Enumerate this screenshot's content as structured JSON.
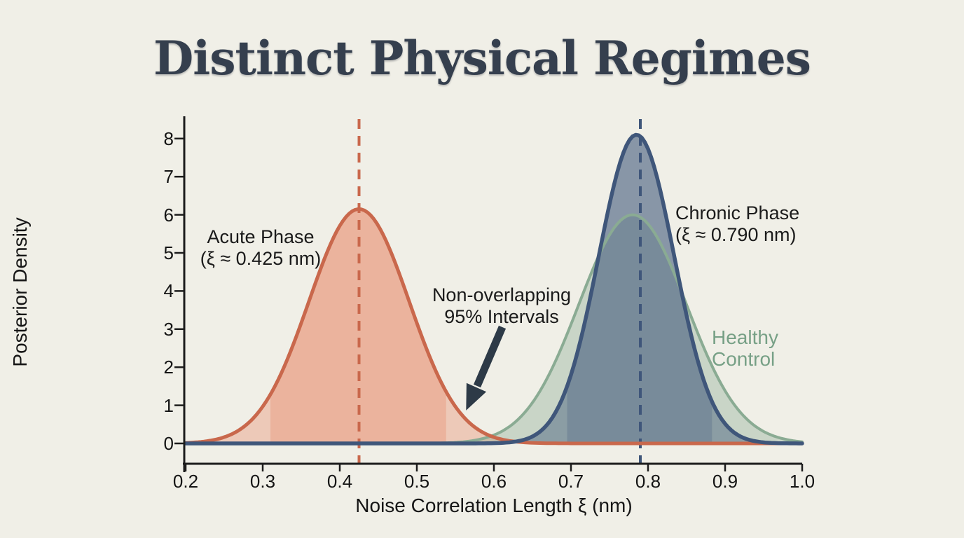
{
  "title": "Distinct Physical Regimes",
  "axes": {
    "xlabel": "Noise Correlation Length ξ (nm)",
    "ylabel": "Posterior Density",
    "x_ticks": [
      "0.2",
      "0.3",
      "0.4",
      "0.5",
      "0.6",
      "0.7",
      "0.8",
      "0.9",
      "1.0"
    ],
    "y_ticks": [
      "0",
      "1",
      "2",
      "3",
      "4",
      "5",
      "6",
      "7",
      "8"
    ]
  },
  "annotations": {
    "acute_line1": "Acute Phase",
    "acute_line2": "(ξ ≈ 0.425 nm)",
    "chronic_line1": "Chronic Phase",
    "chronic_line2": "(ξ ≈ 0.790 nm)",
    "healthy_line1": "Healthy",
    "healthy_line2": "Control",
    "interval_line1": "Non-overlapping",
    "interval_line2": "95% Intervals"
  },
  "colors": {
    "background": "#f0efe7",
    "title_text": "#353f4e",
    "axis": "#1c1c1c",
    "acute": "#c9684c",
    "acute_fill": "#e8825f",
    "chronic": "#3f567a",
    "chronic_fill": "#41587a",
    "healthy": "#8aab93",
    "healthy_fill": "#8aab93",
    "healthy_text": "#77a086",
    "arrow": "#2d3a47"
  },
  "chart_data": {
    "type": "area",
    "title": "Distinct Physical Regimes",
    "xlabel": "Noise Correlation Length ξ (nm)",
    "ylabel": "Posterior Density",
    "xlim": [
      0.2,
      1.0
    ],
    "ylim": [
      0,
      8
    ],
    "x_tick_step": 0.1,
    "y_tick_step": 1,
    "grid": false,
    "legend_position": "annotated-in-plot",
    "series": [
      {
        "name": "Acute Phase",
        "distribution": "gaussian",
        "mean": 0.425,
        "sd": 0.065,
        "peak_density": 6.15,
        "ci95": [
          0.31,
          0.54
        ],
        "dashed_mean_line_x": 0.425,
        "color": "#c9684c",
        "fill_color": "#e8825f",
        "fill_opacity": 0.34,
        "band_opacity": 0.3,
        "stroke_width": 5
      },
      {
        "name": "Healthy Control",
        "distribution": "gaussian",
        "mean": 0.78,
        "sd": 0.07,
        "peak_density": 6.0,
        "color": "#8aab93",
        "fill_color": "#8aab93",
        "fill_opacity": 0.38,
        "stroke_width": 4
      },
      {
        "name": "Chronic Phase",
        "distribution": "gaussian",
        "mean": 0.785,
        "sd": 0.049,
        "peak_density": 8.1,
        "ci95": [
          0.695,
          0.885
        ],
        "dashed_mean_line_x": 0.79,
        "color": "#3f567a",
        "fill_color": "#41587a",
        "fill_opacity": 0.45,
        "band_opacity": 0.25,
        "stroke_width": 5.5
      }
    ],
    "annotation_arrow": {
      "from_x": 0.611,
      "from_y": 3.05,
      "to_x": 0.564,
      "to_y": 0.87,
      "label": "Non-overlapping 95% Intervals"
    }
  }
}
